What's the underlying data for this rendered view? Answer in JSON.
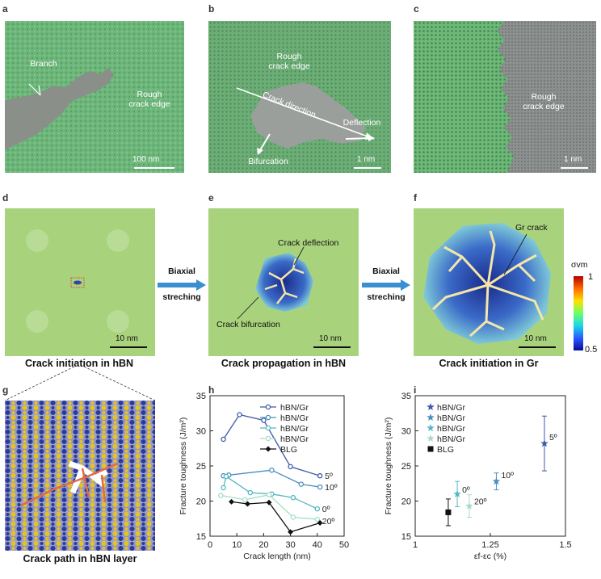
{
  "panel_letters": {
    "a": "a",
    "b": "b",
    "c": "c",
    "d": "d",
    "e": "e",
    "f": "f",
    "g": "g",
    "h": "h",
    "i": "i"
  },
  "panel_a": {
    "branch": "Branch",
    "rough": "Rough\ncrack edge",
    "scale": "100 nm"
  },
  "panel_b": {
    "rough": "Rough\ncrack edge",
    "direction": "Crack direction",
    "deflection": "Deflection",
    "bifurcation": "Bifurcation",
    "scale": "1 nm"
  },
  "panel_c": {
    "rough": "Rough\ncrack edge",
    "scale": "1 nm"
  },
  "panel_d": {
    "scale": "10 nm",
    "caption": "Crack initiation in hBN"
  },
  "panel_e": {
    "deflection": "Crack deflection",
    "bifurcation": "Crack bifurcation",
    "scale": "10 nm",
    "caption": "Crack propagation in hBN"
  },
  "panel_f": {
    "gr_crack": "Gr crack",
    "scale": "10 nm",
    "caption": "Crack initiation in Gr"
  },
  "arrows": {
    "arrow1": "Biaxial\nstreching",
    "arrow2": "Biaxial\nstreching"
  },
  "colorbar": {
    "label": "σvm",
    "max": "1",
    "min": "0.5"
  },
  "panel_g": {
    "caption": "Crack path in hBN layer"
  },
  "colors": {
    "green_bg": "#a8d27a",
    "tem_green": "#5fae6f",
    "crack_yellow": "#f3e6a8",
    "atom_blue": "#2c3a9a",
    "atom_yellow": "#e8c21e",
    "arrow_blue": "#3a8fd0",
    "s1": "#3e5aa8",
    "s2": "#4b8ec0",
    "s3": "#55b8c0",
    "s4": "#a8dcc8",
    "blg": "#111111"
  },
  "chart_data": [
    {
      "type": "line",
      "xlabel": "Crack length (nm)",
      "ylabel": "Fracture toughness (J/m²)",
      "xlim": [
        0,
        50
      ],
      "ylim": [
        15,
        35
      ],
      "xticks": [
        0,
        10,
        20,
        30,
        40,
        50
      ],
      "yticks": [
        15,
        20,
        25,
        30,
        35
      ],
      "legend_position": "top-right",
      "series": [
        {
          "name": "hBN/Gr",
          "color": "#3e5aa8",
          "marker": "circle",
          "x": [
            5,
            11,
            20,
            30,
            41
          ],
          "y": [
            28.8,
            32.3,
            31.5,
            24.9,
            23.6
          ],
          "annotation": "5º"
        },
        {
          "name": "hBN/Gr",
          "color": "#4b8ec0",
          "marker": "circle",
          "x": [
            5,
            7,
            23,
            34,
            41
          ],
          "y": [
            23.6,
            23.7,
            24.4,
            22.4,
            22.0
          ],
          "annotation": "10º"
        },
        {
          "name": "hBN/Gr",
          "color": "#55b8c0",
          "marker": "circle",
          "x": [
            5,
            6,
            15,
            23,
            31,
            40
          ],
          "y": [
            21.9,
            23.5,
            21.2,
            21.0,
            20.5,
            18.9
          ],
          "annotation": "0º"
        },
        {
          "name": "hBN/Gr",
          "color": "#a8dcc8",
          "marker": "circle",
          "x": [
            4,
            13,
            22,
            31,
            40
          ],
          "y": [
            20.8,
            20.2,
            20.9,
            17.7,
            17.4
          ],
          "annotation": "20º"
        },
        {
          "name": "BLG",
          "color": "#111111",
          "marker": "diamond",
          "x": [
            8,
            14,
            22,
            30,
            41
          ],
          "y": [
            19.9,
            19.6,
            19.8,
            15.6,
            16.9
          ]
        }
      ]
    },
    {
      "type": "scatter",
      "xlabel": "εf-εc (%)",
      "ylabel": "Fracture toughness (J/m²)",
      "xlim": [
        1,
        1.5
      ],
      "ylim": [
        15,
        35
      ],
      "xticks": [
        1,
        1.25,
        1.5
      ],
      "yticks": [
        15,
        20,
        25,
        30,
        35
      ],
      "legend_position": "top-left",
      "series": [
        {
          "name": "hBN/Gr",
          "color": "#3e5aa8",
          "marker": "star",
          "x": [
            1.43
          ],
          "y": [
            28.2
          ],
          "err": [
            3.9
          ],
          "annotation": "5º"
        },
        {
          "name": "hBN/Gr",
          "color": "#4b8ec0",
          "marker": "star",
          "x": [
            1.27
          ],
          "y": [
            22.8
          ],
          "err": [
            1.2
          ],
          "annotation": "10º"
        },
        {
          "name": "hBN/Gr",
          "color": "#55b8c0",
          "marker": "star",
          "x": [
            1.14
          ],
          "y": [
            21.0
          ],
          "err": [
            1.8
          ],
          "annotation": "0º"
        },
        {
          "name": "hBN/Gr",
          "color": "#a8dcc8",
          "marker": "star",
          "x": [
            1.18
          ],
          "y": [
            19.3
          ],
          "err": [
            1.6
          ],
          "annotation": "20º"
        },
        {
          "name": "BLG",
          "color": "#111111",
          "marker": "square",
          "x": [
            1.11
          ],
          "y": [
            18.4
          ],
          "err": [
            1.9
          ]
        }
      ]
    }
  ]
}
